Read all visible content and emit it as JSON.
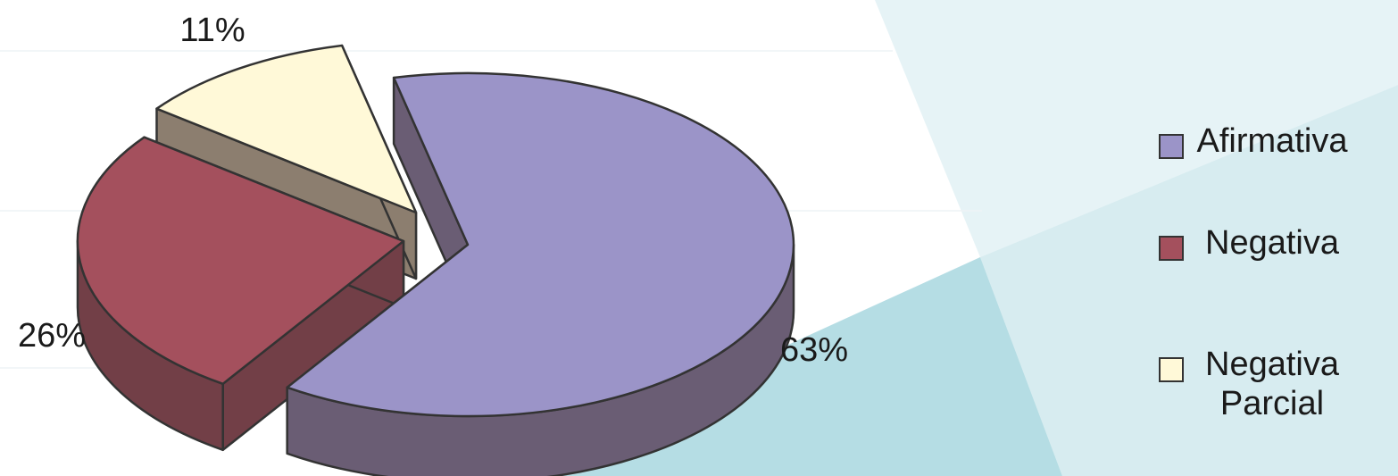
{
  "chart_data": {
    "type": "pie",
    "style": "3d-exploded",
    "categories": [
      "Afirmativa",
      "Negativa",
      "Negativa Parcial"
    ],
    "values": [
      63,
      26,
      11
    ],
    "value_labels": [
      "63%",
      "26%",
      "11%"
    ],
    "unit": "%",
    "colors": [
      "#9b94c8",
      "#a4505d",
      "#fff9d8"
    ],
    "side_colors": [
      "#6a5d74",
      "#723f47",
      "#8c7e6f"
    ],
    "outline_color": "#333333",
    "legend_position": "right",
    "title": ""
  },
  "legend": {
    "items": [
      {
        "label": "Afirmativa",
        "color": "#9b94c8"
      },
      {
        "label": "Negativa",
        "color": "#a4505d"
      },
      {
        "label": "Negativa Parcial",
        "color": "#fff9d8"
      }
    ]
  },
  "background": {
    "base_color": "#ffffff",
    "accent_light": "#e6f3f6",
    "accent_mid": "#d7ecf0",
    "accent_dark": "#b5dde4",
    "line_color": "#eef3f5"
  }
}
